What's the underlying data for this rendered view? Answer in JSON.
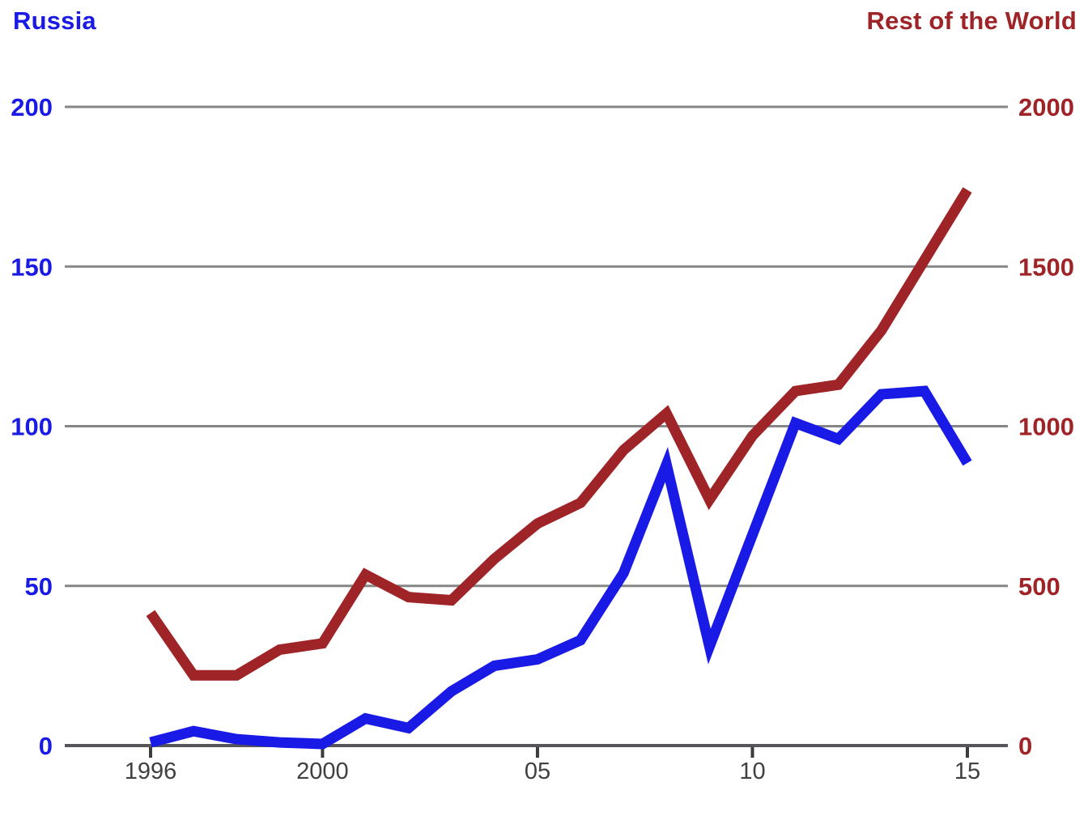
{
  "titles": {
    "left": "Russia",
    "right": "Rest of the World"
  },
  "colors": {
    "russia_blue": "#1a1ae6",
    "world_red": "#9e2428",
    "gridline": "#868686",
    "baseline": "#55555a",
    "x_tick": "#3c3c3c",
    "x_label": "#404040"
  },
  "chart_data": {
    "type": "line",
    "x": [
      1996,
      1997,
      1998,
      1999,
      2000,
      2001,
      2002,
      2003,
      2004,
      2005,
      2006,
      2007,
      2008,
      2009,
      2010,
      2011,
      2012,
      2013,
      2014,
      2015
    ],
    "series": [
      {
        "name": "Russia",
        "axis": "left",
        "color_key": "russia_blue",
        "values": [
          1,
          4.5,
          2,
          1,
          0.5,
          8.5,
          5.5,
          17,
          25,
          27,
          33,
          54,
          88,
          31,
          66,
          101,
          96,
          110,
          111,
          88.5
        ]
      },
      {
        "name": "Rest of the World",
        "axis": "right",
        "color_key": "world_red",
        "values": [
          415,
          220,
          220,
          300,
          320,
          535,
          465,
          455,
          585,
          695,
          760,
          925,
          1040,
          770,
          970,
          1110,
          1130,
          1300,
          1520,
          1740
        ]
      }
    ],
    "left_axis": {
      "range": [
        0,
        200
      ],
      "ticks": [
        0,
        50,
        100,
        150,
        200
      ]
    },
    "right_axis": {
      "range": [
        0,
        2000
      ],
      "ticks": [
        0,
        500,
        1000,
        1500,
        2000
      ]
    },
    "x_ticks": [
      {
        "value": 1996,
        "label": "1996"
      },
      {
        "value": 2000,
        "label": "2000"
      },
      {
        "value": 2005,
        "label": "05"
      },
      {
        "value": 2010,
        "label": "10"
      },
      {
        "value": 2015,
        "label": "15"
      }
    ],
    "grid": true,
    "legend_position": "axis-titles-top"
  }
}
